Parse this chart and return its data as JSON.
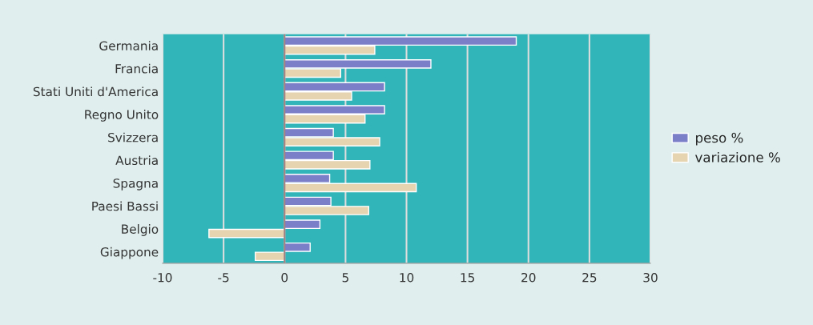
{
  "chart_data": {
    "type": "bar",
    "orientation": "horizontal",
    "categories": [
      "Germania",
      "Francia",
      "Stati Uniti d'America",
      "Regno Unito",
      "Svizzera",
      "Austria",
      "Spagna",
      "Paesi Bassi",
      "Belgio",
      "Giappone"
    ],
    "series": [
      {
        "name": "peso %",
        "color": "#7b7fc8",
        "values": [
          19,
          12,
          8.2,
          8.2,
          4,
          4,
          3.7,
          3.8,
          2.9,
          2.1
        ]
      },
      {
        "name": "variazione %",
        "color": "#e6d3b0",
        "values": [
          7.4,
          4.6,
          5.5,
          6.6,
          7.8,
          7,
          10.8,
          6.9,
          -6.2,
          -2.4
        ]
      }
    ],
    "xlim": [
      -10,
      30
    ],
    "xticks": [
      -10,
      -5,
      0,
      5,
      10,
      15,
      20,
      25,
      30
    ],
    "grid": "x",
    "legend": "right"
  }
}
